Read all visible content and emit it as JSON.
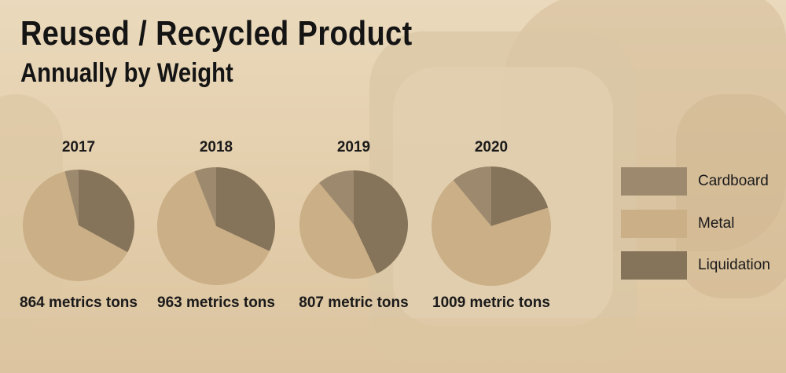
{
  "header": {
    "title": "Reused / Recycled Product",
    "subtitle": "Annually by Weight"
  },
  "colors": {
    "Cardboard": "#9d8a6e",
    "Metal": "#cbaf86",
    "Liquidation": "#85735a"
  },
  "legend": [
    {
      "label": "Cardboard"
    },
    {
      "label": "Metal"
    },
    {
      "label": "Liquidation"
    }
  ],
  "chart_data": {
    "type": "pie",
    "title": "Reused / Recycled Product",
    "subtitle": "Annually by Weight",
    "series_order": [
      "Liquidation",
      "Metal",
      "Cardboard"
    ],
    "pies": [
      {
        "label": "2017",
        "total_text": "864 metrics tons",
        "slices": [
          {
            "name": "Liquidation",
            "value": 33
          },
          {
            "name": "Metal",
            "value": 63
          },
          {
            "name": "Cardboard",
            "value": 4
          }
        ]
      },
      {
        "label": "2018",
        "total_text": "963 metrics tons",
        "slices": [
          {
            "name": "Liquidation",
            "value": 32
          },
          {
            "name": "Metal",
            "value": 62
          },
          {
            "name": "Cardboard",
            "value": 6
          }
        ]
      },
      {
        "label": "2019",
        "total_text": "807 metric tons",
        "slices": [
          {
            "name": "Liquidation",
            "value": 43
          },
          {
            "name": "Metal",
            "value": 46
          },
          {
            "name": "Cardboard",
            "value": 11
          }
        ]
      },
      {
        "label": "2020",
        "total_text": "1009 metric tons",
        "slices": [
          {
            "name": "Liquidation",
            "value": 20
          },
          {
            "name": "Metal",
            "value": 69
          },
          {
            "name": "Cardboard",
            "value": 11
          }
        ]
      }
    ]
  }
}
